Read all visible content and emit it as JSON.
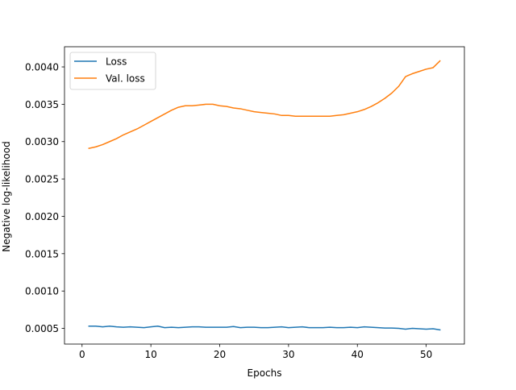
{
  "chart_data": {
    "type": "line",
    "xlabel": "Epochs",
    "ylabel": "Negative log-likelihood",
    "xlim": [
      -2.55,
      55.55
    ],
    "ylim": [
      0.00029,
      0.00427
    ],
    "xticks": [
      0,
      10,
      20,
      30,
      40,
      50
    ],
    "yticks": [
      0.0005,
      0.001,
      0.0015,
      0.002,
      0.0025,
      0.003,
      0.0035,
      0.004
    ],
    "ytick_labels": [
      "0.0005",
      "0.0010",
      "0.0015",
      "0.0020",
      "0.0025",
      "0.0030",
      "0.0035",
      "0.0040"
    ],
    "legend": "top-left",
    "grid": false,
    "x": [
      1,
      2,
      3,
      4,
      5,
      6,
      7,
      8,
      9,
      10,
      11,
      12,
      13,
      14,
      15,
      16,
      17,
      18,
      19,
      20,
      21,
      22,
      23,
      24,
      25,
      26,
      27,
      28,
      29,
      30,
      31,
      32,
      33,
      34,
      35,
      36,
      37,
      38,
      39,
      40,
      41,
      42,
      43,
      44,
      45,
      46,
      47,
      48,
      49,
      50,
      51,
      52
    ],
    "series": [
      {
        "name": "Loss",
        "color": "#1f77b4",
        "values": [
          0.00053,
          0.00053,
          0.00052,
          0.00053,
          0.00052,
          0.000515,
          0.00052,
          0.000515,
          0.00051,
          0.00052,
          0.00053,
          0.00051,
          0.000515,
          0.00051,
          0.000515,
          0.00052,
          0.00052,
          0.000515,
          0.000515,
          0.000515,
          0.000515,
          0.000525,
          0.00051,
          0.000515,
          0.000515,
          0.00051,
          0.00051,
          0.000515,
          0.00052,
          0.00051,
          0.000515,
          0.00052,
          0.00051,
          0.00051,
          0.00051,
          0.000515,
          0.00051,
          0.00051,
          0.000515,
          0.00051,
          0.00052,
          0.000515,
          0.00051,
          0.000505,
          0.000505,
          0.0005,
          0.00049,
          0.0005,
          0.000495,
          0.00049,
          0.000495,
          0.00048
        ]
      },
      {
        "name": "Val. loss",
        "color": "#ff7f0e",
        "values": [
          0.00291,
          0.00293,
          0.00296,
          0.003,
          0.00304,
          0.00309,
          0.00313,
          0.00317,
          0.00322,
          0.00327,
          0.00332,
          0.00337,
          0.00342,
          0.00346,
          0.00348,
          0.00348,
          0.00349,
          0.0035,
          0.0035,
          0.00348,
          0.00347,
          0.00345,
          0.00344,
          0.00342,
          0.0034,
          0.00339,
          0.00338,
          0.00337,
          0.00335,
          0.00335,
          0.00334,
          0.00334,
          0.00334,
          0.00334,
          0.00334,
          0.00334,
          0.00335,
          0.00336,
          0.00338,
          0.0034,
          0.00343,
          0.00347,
          0.00352,
          0.00358,
          0.00365,
          0.00374,
          0.00387,
          0.00391,
          0.00394,
          0.00397,
          0.00399,
          0.00408
        ]
      }
    ]
  }
}
